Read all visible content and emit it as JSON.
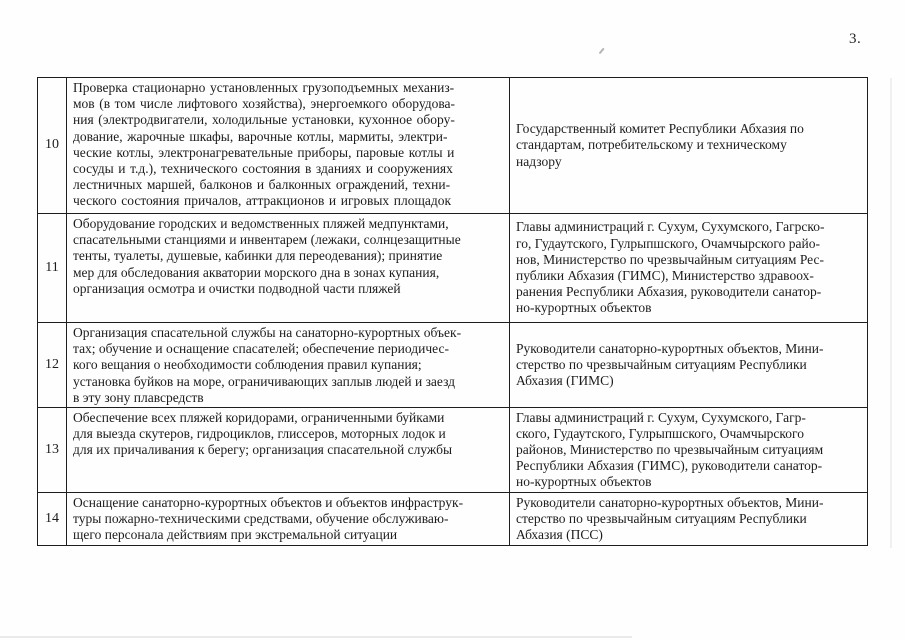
{
  "page": {
    "number": "3."
  },
  "table": {
    "rows": [
      {
        "num": "10",
        "activity": [
          "Проверка стационарно установленных грузоподъемных механиз-",
          "мов (в том числе лифтового хозяйства), энергоемкого оборудова-",
          "ния (электродвигатели, холодильные установки, кухонное обору-",
          "дование, жарочные шкафы, варочные котлы, мармиты, электри-",
          "ческие котлы, электронагревательные приборы, паровые котлы и",
          "сосуды и т.д.), технического состояния в зданиях и сооружениях",
          "лестничных маршей, балконов и балконных ограждений, техни-",
          "ческого состояния причалов, аттракционов и игровых площадок"
        ],
        "responsible": [
          "Государственный комитет Республики Абхазия по",
          "стандартам, потребительскому и техническому",
          "надзору"
        ]
      },
      {
        "num": "11",
        "activity": [
          "Оборудование городских и ведомственных пляжей медпунктами,",
          "спасательными станциями и инвентарем (лежаки, солнцезащитные",
          "тенты, туалеты, душевые, кабинки для переодевания); принятие",
          "мер для обследования акватории морского дна в зонах купания,",
          "организация осмотра и очистки подводной части пляжей"
        ],
        "responsible": [
          "Главы администраций г. Сухум, Сухумского, Гагрско-",
          "го, Гудаутского, Гулрыпшского, Очамчырского райо-",
          "нов, Министерство по чрезвычайным ситуациям Рес-",
          "публики Абхазия (ГИМС), Министерство здравоох-",
          "ранения Республики Абхазия, руководители санатор-",
          "но-курортных объектов"
        ]
      },
      {
        "num": "12",
        "activity": [
          "Организация спасательной службы на санаторно-курортных объек-",
          "тах; обучение и оснащение спасателей; обеспечение периодичес-",
          "кого вещания о необходимости соблюдения правил купания;",
          "установка буйков на море, ограничивающих заплыв людей и заезд",
          "в эту зону плавсредств"
        ],
        "responsible": [
          "Руководители санаторно-курортных объектов, Мини-",
          "стерство по чрезвычайным ситуациям Республики",
          "Абхазия (ГИМС)"
        ]
      },
      {
        "num": "13",
        "activity": [
          "Обеспечение всех пляжей коридорами, ограниченными буйками",
          "для выезда скутеров, гидроциклов, глиссеров, моторных лодок и",
          "для их причаливания к берегу; организация спасательной службы"
        ],
        "responsible": [
          "Главы администраций г. Сухум, Сухумского, Гагр-",
          "ского, Гудаутского, Гулрыпшского, Очамчырского",
          "районов, Министерство по чрезвычайным ситуациям",
          "Республики Абхазия (ГИМС), руководители санатор-",
          "но-курортных объектов"
        ]
      },
      {
        "num": "14",
        "activity": [
          "Оснащение санаторно-курортных объектов и объектов инфраструк-",
          "туры пожарно-техническими средствами, обучение обслуживаю-",
          "щего персонала действиям при экстремальной ситуации"
        ],
        "responsible": [
          "Руководители санаторно-курортных объектов, Мини-",
          "стерство по чрезвычайным ситуациям Республики",
          "Абхазия (ПСС)"
        ]
      }
    ]
  }
}
